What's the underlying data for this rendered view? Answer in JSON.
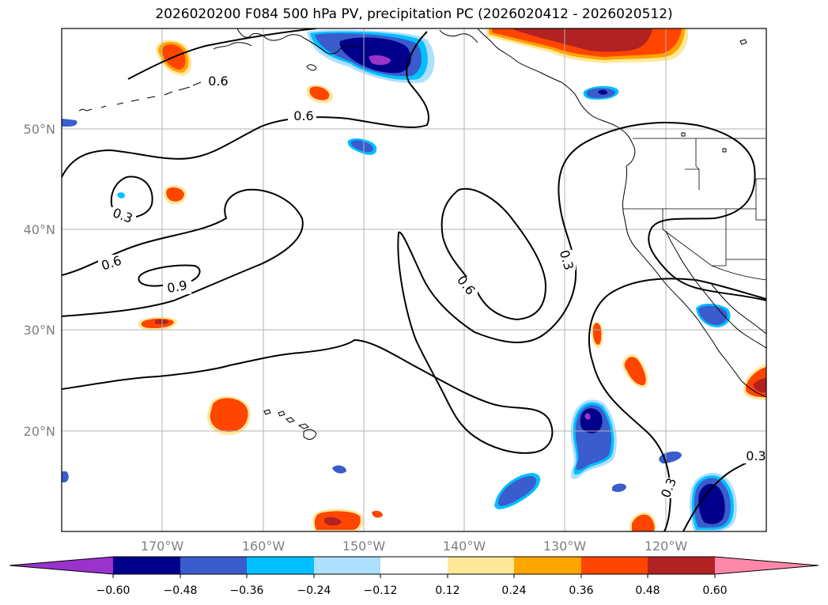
{
  "title": "2026020200 F084 500 hPa PV, precipitation PC (2026020412 - 2026020512)",
  "map": {
    "projection": "PlateCarree",
    "lon_range": [
      -180,
      -110
    ],
    "lat_range": [
      10,
      60
    ],
    "lat_ticks": [
      {
        "value": 50,
        "label": "50°N"
      },
      {
        "value": 40,
        "label": "40°N"
      },
      {
        "value": 30,
        "label": "30°N"
      },
      {
        "value": 20,
        "label": "20°N"
      }
    ],
    "lon_ticks": [
      {
        "value": -170,
        "label": "170°W"
      },
      {
        "value": -160,
        "label": "160°W"
      },
      {
        "value": -150,
        "label": "150°W"
      },
      {
        "value": -140,
        "label": "140°W"
      },
      {
        "value": -130,
        "label": "130°W"
      },
      {
        "value": -120,
        "label": "120°W"
      }
    ],
    "contour_labels": [
      "0.6",
      "0.6",
      "0.3",
      "0.6",
      "0.9",
      "0.6",
      "0.3",
      "0.3",
      "0.3"
    ]
  },
  "colorbar": {
    "tick_labels": [
      "−0.60",
      "−0.48",
      "−0.36",
      "−0.24",
      "−0.12",
      "0.12",
      "0.24",
      "0.36",
      "0.48",
      "0.60"
    ],
    "colors": [
      "#9933cc",
      "#00008b",
      "#3a5ccc",
      "#00bfff",
      "#addfff",
      "#ffffff",
      "#ffe89a",
      "#ffa500",
      "#ff4500",
      "#b22222",
      "#ff88aa"
    ]
  },
  "colors": {
    "c_purple": "#9933cc",
    "c_navy": "#00008b",
    "c_blue": "#3a5ccc",
    "c_sky": "#00bfff",
    "c_lightblue": "#addfff",
    "c_yellow": "#ffe89a",
    "c_orange": "#ffa500",
    "c_redorange": "#ff4500",
    "c_darkred": "#b22222",
    "c_pink": "#ff88aa"
  }
}
